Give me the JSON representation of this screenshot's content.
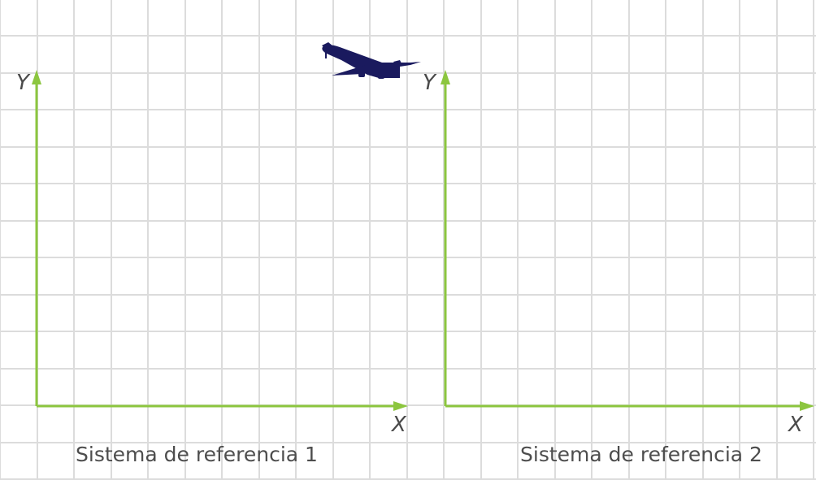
{
  "colors": {
    "grid": "#dcdcdc",
    "axis": "#8cc63f",
    "text": "#4a4a4a",
    "airplane": "#1a1a5e"
  },
  "icons": {
    "airplane": "airplane-icon"
  },
  "frames": [
    {
      "y_label": "Y",
      "x_label": "X",
      "caption": "Sistema de referencia 1"
    },
    {
      "y_label": "Y",
      "x_label": "X",
      "caption": "Sistema de referencia 2"
    }
  ]
}
